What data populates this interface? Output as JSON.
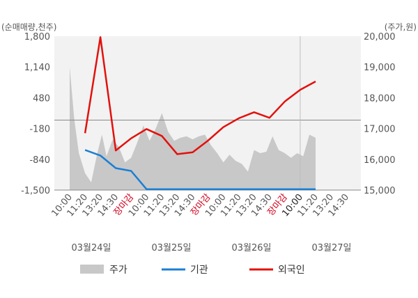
{
  "chart_data": {
    "type": "line",
    "left_unit": "(순매매량,천주)",
    "right_unit": "(주가,원)",
    "left_ticks": [
      "1,800",
      "1,140",
      "480",
      "-180",
      "-840",
      "-1,500"
    ],
    "right_ticks": [
      "20,000",
      "19,000",
      "18,000",
      "17,000",
      "16,000",
      "15,000"
    ],
    "ylim_left": [
      -1500,
      1800
    ],
    "ylim_right": [
      15000,
      20000
    ],
    "x_tick_labels": [
      "10:00",
      "11:20",
      "13:20",
      "14:30",
      "장마감",
      "10:00",
      "11:20",
      "13:20",
      "14:30",
      "장마감",
      "10:00",
      "11:20",
      "13:20",
      "14:30",
      "장마감",
      "10:00",
      "11:20",
      "13:20",
      "14:30"
    ],
    "x_tick_styles": [
      "normal",
      "normal",
      "normal",
      "normal",
      "close",
      "normal",
      "normal",
      "normal",
      "normal",
      "close",
      "normal",
      "normal",
      "normal",
      "normal",
      "close",
      "bold",
      "normal",
      "normal",
      "normal"
    ],
    "dates": [
      "03월24일",
      "03월25일",
      "03월26일",
      "03월27일"
    ],
    "legend": [
      "주가",
      "기관",
      "외국인"
    ],
    "colors": {
      "price": "#c8c8c8",
      "institution": "#1a7fd4",
      "foreign": "#e3100c",
      "grid": "#888888"
    },
    "series": [
      {
        "name": "기관",
        "x": [
          1,
          2,
          3,
          4,
          5,
          6,
          7,
          8,
          9,
          10,
          11,
          12,
          13,
          14,
          15,
          16
        ],
        "values": [
          -640,
          -760,
          -1030,
          -1090,
          -1480,
          -1480,
          -1480,
          -1480,
          -1480,
          -1480,
          -1480,
          -1480,
          -1480,
          -1480,
          -1480,
          -1480
        ]
      },
      {
        "name": "외국인",
        "x": [
          1,
          2,
          3,
          4,
          5,
          6,
          7,
          8,
          9,
          10,
          11,
          12,
          13,
          14,
          15,
          16
        ],
        "values": [
          -280,
          1780,
          -650,
          -390,
          -190,
          -340,
          -730,
          -690,
          -440,
          -150,
          40,
          170,
          50,
          400,
          650,
          830
        ]
      },
      {
        "name": "주가",
        "x": [
          0,
          0.3,
          0.6,
          1.0,
          1.4,
          1.8,
          2.1,
          2.4,
          2.8,
          3.2,
          3.6,
          4.0,
          4.4,
          4.8,
          5.2,
          5.6,
          6.0,
          6.4,
          6.8,
          7.2,
          7.6,
          8.0,
          8.4,
          8.8,
          9.2,
          9.6,
          10.0,
          10.4,
          10.8,
          11.2,
          11.6,
          12.0,
          12.4,
          12.8,
          13.2,
          13.6,
          14.0,
          14.4,
          14.8,
          15.2,
          15.6,
          16.0
        ],
        "values": [
          19000,
          17300,
          16200,
          15550,
          15250,
          16200,
          16800,
          16100,
          16650,
          16400,
          15900,
          16050,
          16550,
          17100,
          16600,
          17000,
          17500,
          16900,
          16600,
          16700,
          16750,
          16650,
          16750,
          16800,
          16450,
          16200,
          15900,
          16150,
          15950,
          15850,
          15600,
          16300,
          16200,
          16250,
          16750,
          16300,
          16200,
          16050,
          16200,
          16100,
          16800,
          16700
        ]
      }
    ]
  }
}
